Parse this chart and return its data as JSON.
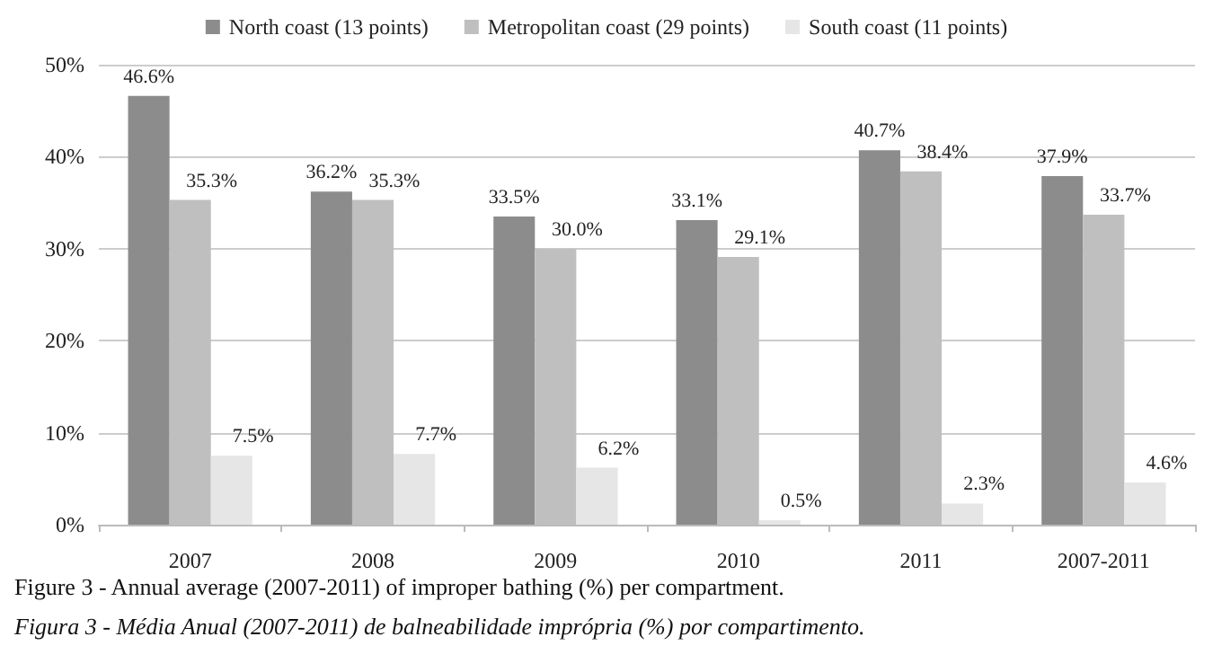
{
  "chart_data": {
    "type": "bar",
    "categories": [
      "2007",
      "2008",
      "2009",
      "2010",
      "2011",
      "2007-2011"
    ],
    "series": [
      {
        "name": "North coast (13 points)",
        "color": "#8c8c8c",
        "values": [
          46.6,
          36.2,
          33.5,
          33.1,
          40.7,
          37.9
        ],
        "value_labels": [
          "46.6%",
          "36.2%",
          "33.5%",
          "33.1%",
          "40.7%",
          "37.9%"
        ]
      },
      {
        "name": "Metropolitan coast (29 points)",
        "color": "#bfbfbf",
        "values": [
          35.3,
          35.3,
          30.0,
          29.1,
          38.4,
          33.7
        ],
        "value_labels": [
          "35.3%",
          "35.3%",
          "30.0%",
          "29.1%",
          "38.4%",
          "33.7%"
        ]
      },
      {
        "name": "South coast (11 points)",
        "color": "#e6e6e6",
        "values": [
          7.5,
          7.7,
          6.2,
          0.5,
          2.3,
          4.6
        ],
        "value_labels": [
          "7.5%",
          "7.7%",
          "6.2%",
          "0.5%",
          "2.3%",
          "4.6%"
        ]
      }
    ],
    "ylim": [
      0,
      50
    ],
    "yticks": [
      {
        "value": 0,
        "label": "0%"
      },
      {
        "value": 10,
        "label": "10%"
      },
      {
        "value": 20,
        "label": "20%"
      },
      {
        "value": 30,
        "label": "30%"
      },
      {
        "value": 40,
        "label": "40%"
      },
      {
        "value": 50,
        "label": "50%"
      }
    ],
    "grid": "y",
    "legend": "top",
    "annotations": [
      "Figure 3 - Annual average (2007-2011) of improper bathing (%) per compartment.",
      "Figura 3 - Média Anual (2007-2011) de balneabilidade imprópria (%) por compartimento."
    ]
  }
}
